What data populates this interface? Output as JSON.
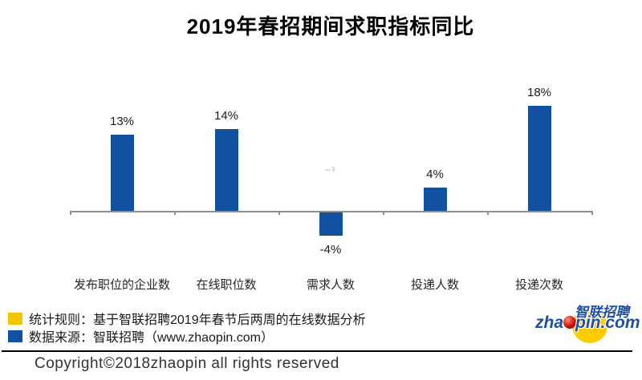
{
  "chart_data": {
    "type": "bar",
    "title": "2019年春招期间求职指标同比",
    "categories": [
      "发布职位的企业数",
      "在线职位数",
      "需求人数",
      "投递人数",
      "投递次数"
    ],
    "values": [
      13,
      14,
      -4,
      4,
      18
    ],
    "value_labels": [
      "13%",
      "14%",
      "-4%",
      "4%",
      "18%"
    ],
    "unit": "%",
    "xlabel": "",
    "ylabel": "",
    "ylim": [
      -8,
      24
    ],
    "grid": false,
    "legend_position": "none",
    "bar_color": "#11519F",
    "axis_color": "#8f8f8f"
  },
  "legend": {
    "items": [
      {
        "swatch_color": "#F5C400",
        "text": "统计规则：基于智联招聘2019年春节后两周的在线数据分析"
      },
      {
        "swatch_color": "#11519F",
        "text": "数据来源：智联招聘（www.zhaopin.com）"
      }
    ]
  },
  "footer": {
    "copyright": "Copyright©2018zhaopin all rights reserved"
  },
  "logo": {
    "cn_text": "智联招聘",
    "domain_prefix": "zha",
    "domain_suffix": "pin.com",
    "ellipse_color": "#FFCC00",
    "text_color": "#1D50A2",
    "ball_color": "#CC1100"
  }
}
